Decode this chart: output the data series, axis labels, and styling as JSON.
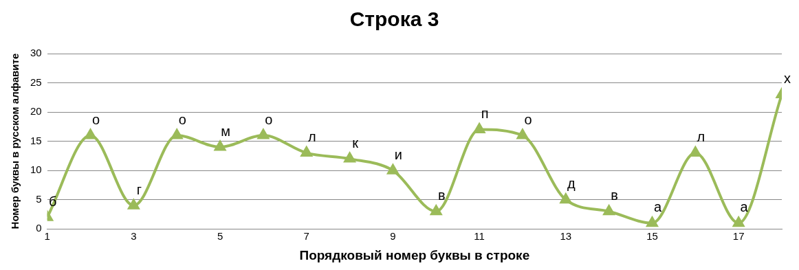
{
  "chart_data": {
    "type": "line",
    "title": "Строка 3",
    "xlabel": "Порядковый номер буквы в строке",
    "ylabel": "Номер буквы в русском алфавите",
    "x": [
      1,
      2,
      3,
      4,
      5,
      6,
      7,
      8,
      9,
      10,
      11,
      12,
      13,
      14,
      15,
      16,
      17,
      18
    ],
    "series": [
      {
        "color": "#9bbb59",
        "values": [
          2,
          16,
          4,
          16,
          14,
          16,
          13,
          12,
          10,
          3,
          17,
          16,
          5,
          3,
          1,
          13,
          1,
          23
        ]
      }
    ],
    "xlim": [
      1,
      18
    ],
    "xticks": [
      1,
      3,
      5,
      7,
      9,
      11,
      13,
      15,
      17
    ],
    "ylim": [
      0,
      30
    ],
    "yticks": [
      0,
      5,
      10,
      15,
      20,
      25,
      30
    ],
    "grid": "y",
    "legend": false,
    "marker": "triangle",
    "line_style": "solid",
    "annotations": [
      {
        "text": "б",
        "x": 1,
        "y": 2
      },
      {
        "text": "о",
        "x": 2,
        "y": 16
      },
      {
        "text": "г",
        "x": 3,
        "y": 4
      },
      {
        "text": "о",
        "x": 4,
        "y": 16
      },
      {
        "text": "м",
        "x": 5,
        "y": 14
      },
      {
        "text": "о",
        "x": 6,
        "y": 16
      },
      {
        "text": "л",
        "x": 7,
        "y": 13
      },
      {
        "text": "к",
        "x": 8,
        "y": 12
      },
      {
        "text": "и",
        "x": 9,
        "y": 10
      },
      {
        "text": "в",
        "x": 10,
        "y": 3
      },
      {
        "text": "п",
        "x": 11,
        "y": 17
      },
      {
        "text": "о",
        "x": 12,
        "y": 16
      },
      {
        "text": "д",
        "x": 13,
        "y": 5
      },
      {
        "text": "в",
        "x": 14,
        "y": 3
      },
      {
        "text": "а",
        "x": 15,
        "y": 1
      },
      {
        "text": "л",
        "x": 16,
        "y": 13
      },
      {
        "text": "а",
        "x": 17,
        "y": 1
      },
      {
        "text": "х",
        "x": 18,
        "y": 23
      }
    ]
  }
}
